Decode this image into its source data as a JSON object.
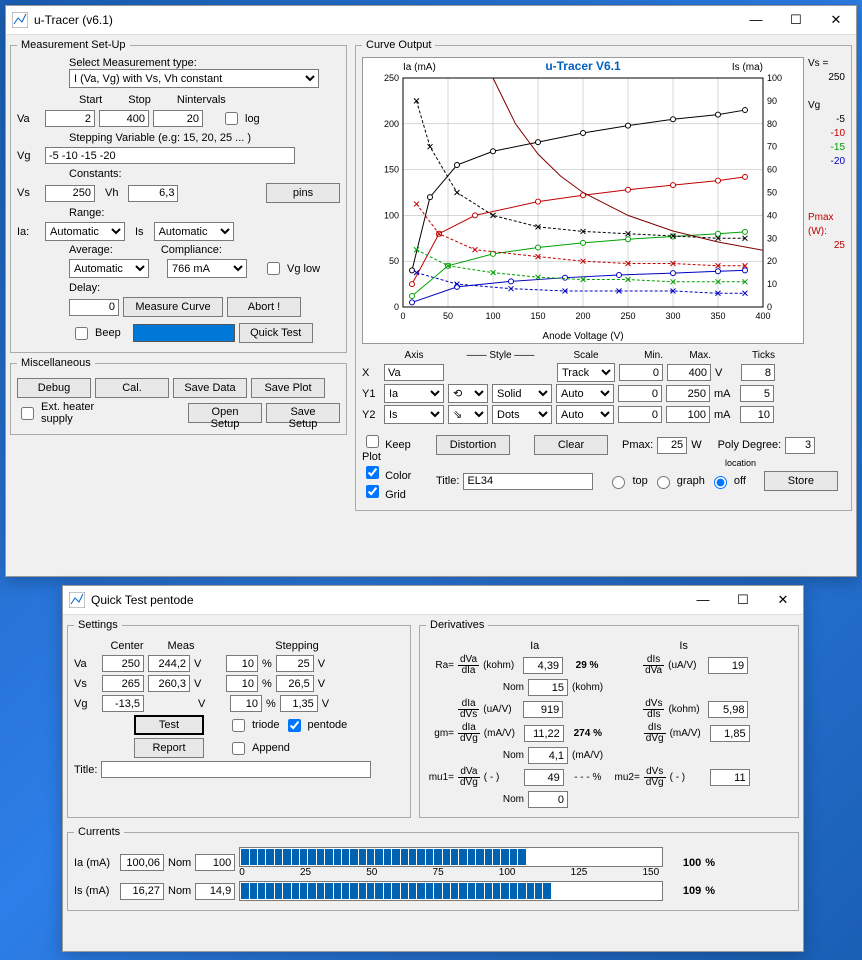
{
  "win1": {
    "title": "u-Tracer (v6.1)",
    "measure": {
      "legend": "Measurement Set-Up",
      "selectType": "Select Measurement type:",
      "typeValue": "I (Va, Vg) with Vs, Vh constant",
      "startLbl": "Start",
      "stopLbl": "Stop",
      "nintLbl": "Nintervals",
      "vaLbl": "Va",
      "vaStart": "2",
      "vaStop": "400",
      "vaN": "20",
      "logLbl": "log",
      "steppingLbl": "Stepping Variable (e.g: 15, 20, 25 ... )",
      "vgLbl": "Vg",
      "vgVal": "-5 -10 -15 -20",
      "constLbl": "Constants:",
      "vsLbl": "Vs",
      "vsVal": "250",
      "vhLbl": "Vh",
      "vhVal": "6,3",
      "pinsBtn": "pins",
      "rangeLbl": "Range:",
      "iaLbl": "Ia:",
      "iaRange": "Automatic",
      "isLbl": "Is",
      "isRange": "Automatic",
      "avgLbl": "Average:",
      "avgVal": "Automatic",
      "compLbl": "Compliance:",
      "compVal": "766 mA",
      "vglowLbl": "Vg low",
      "delayLbl": "Delay:",
      "delayVal": "0",
      "measureBtn": "Measure Curve",
      "abortBtn": "Abort !",
      "beepLbl": "Beep",
      "quickBtn": "Quick Test"
    },
    "misc": {
      "legend": "Miscellaneous",
      "debug": "Debug",
      "cal": "Cal.",
      "saveData": "Save Data",
      "savePlot": "Save Plot",
      "extHeater": "Ext. heater supply",
      "openSetup": "Open Setup",
      "saveSetup": "Save Setup"
    },
    "curve": {
      "legend": "Curve Output",
      "chart": {
        "title": "u-Tracer V6.1",
        "titleColor": "#0060c0",
        "xLabel": "Anode Voltage (V)",
        "y1Label": "Ia (mA)",
        "y2Label": "Is (ma)",
        "xlim": [
          0,
          400
        ],
        "xtick": 50,
        "y1lim": [
          0,
          250
        ],
        "y1tick": 50,
        "y2lim": [
          0,
          100
        ],
        "y2tick": 10,
        "gridColor": "#b0b0b0",
        "bg": "#ffffff",
        "sideLabels": {
          "vs": "Vs =",
          "vsVal": "250",
          "vg": "Vg",
          "pmax": "Pmax (W):",
          "pmaxVal": "25"
        },
        "vgColors": {
          "-5": "#000000",
          "-10": "#c00000",
          "-15": "#00a000",
          "-20": "#0000c0"
        },
        "series": [
          {
            "name": "Ia -5",
            "color": "#000000",
            "style": "solid",
            "marker": "o",
            "data": [
              [
                10,
                40
              ],
              [
                30,
                120
              ],
              [
                60,
                155
              ],
              [
                100,
                170
              ],
              [
                150,
                180
              ],
              [
                200,
                190
              ],
              [
                250,
                198
              ],
              [
                300,
                205
              ],
              [
                350,
                210
              ],
              [
                380,
                215
              ]
            ]
          },
          {
            "name": "Ia -10",
            "color": "#c00000",
            "style": "solid",
            "marker": "o",
            "data": [
              [
                10,
                25
              ],
              [
                40,
                80
              ],
              [
                80,
                100
              ],
              [
                150,
                115
              ],
              [
                200,
                122
              ],
              [
                250,
                128
              ],
              [
                300,
                133
              ],
              [
                350,
                138
              ],
              [
                380,
                142
              ]
            ]
          },
          {
            "name": "Ia -15",
            "color": "#00a000",
            "style": "solid",
            "marker": "o",
            "data": [
              [
                10,
                12
              ],
              [
                50,
                45
              ],
              [
                100,
                58
              ],
              [
                150,
                65
              ],
              [
                200,
                70
              ],
              [
                250,
                74
              ],
              [
                300,
                77
              ],
              [
                350,
                80
              ],
              [
                380,
                82
              ]
            ]
          },
          {
            "name": "Ia -20",
            "color": "#0000c0",
            "style": "solid",
            "marker": "o",
            "data": [
              [
                10,
                5
              ],
              [
                60,
                22
              ],
              [
                120,
                28
              ],
              [
                180,
                32
              ],
              [
                240,
                35
              ],
              [
                300,
                37
              ],
              [
                350,
                39
              ],
              [
                380,
                40
              ]
            ]
          },
          {
            "name": "Is -5",
            "color": "#000000",
            "style": "dash",
            "marker": "x",
            "y2": true,
            "data": [
              [
                15,
                90
              ],
              [
                30,
                70
              ],
              [
                60,
                50
              ],
              [
                100,
                40
              ],
              [
                150,
                35
              ],
              [
                200,
                33
              ],
              [
                250,
                32
              ],
              [
                300,
                31
              ],
              [
                350,
                30
              ],
              [
                380,
                30
              ]
            ]
          },
          {
            "name": "Is -10",
            "color": "#c00000",
            "style": "dash",
            "marker": "x",
            "y2": true,
            "data": [
              [
                15,
                45
              ],
              [
                40,
                32
              ],
              [
                80,
                25
              ],
              [
                150,
                22
              ],
              [
                200,
                20
              ],
              [
                250,
                19
              ],
              [
                300,
                19
              ],
              [
                350,
                18
              ],
              [
                380,
                18
              ]
            ]
          },
          {
            "name": "Is -15",
            "color": "#00a000",
            "style": "dash",
            "marker": "x",
            "y2": true,
            "data": [
              [
                15,
                25
              ],
              [
                50,
                18
              ],
              [
                100,
                15
              ],
              [
                150,
                13
              ],
              [
                200,
                12
              ],
              [
                250,
                12
              ],
              [
                300,
                11
              ],
              [
                350,
                11
              ],
              [
                380,
                11
              ]
            ]
          },
          {
            "name": "Is -20",
            "color": "#0000c0",
            "style": "dash",
            "marker": "x",
            "y2": true,
            "data": [
              [
                15,
                15
              ],
              [
                60,
                10
              ],
              [
                120,
                8
              ],
              [
                180,
                7
              ],
              [
                240,
                7
              ],
              [
                300,
                7
              ],
              [
                350,
                6
              ],
              [
                380,
                6
              ]
            ]
          },
          {
            "name": "Pmax",
            "color": "#800000",
            "style": "solid",
            "data": [
              [
                100,
                250
              ],
              [
                125,
                200
              ],
              [
                150,
                167
              ],
              [
                175,
                143
              ],
              [
                200,
                125
              ],
              [
                250,
                100
              ],
              [
                300,
                83
              ],
              [
                350,
                71
              ],
              [
                400,
                62
              ]
            ]
          }
        ]
      },
      "axisHdr": {
        "axis": "Axis",
        "style": "—— Style ——",
        "scale": "Scale",
        "min": "Min.",
        "max": "Max.",
        "ticks": "Ticks"
      },
      "rows": [
        {
          "lbl": "X",
          "axis": "Va",
          "s1": "",
          "s2": "",
          "scale": "Track",
          "min": "0",
          "max": "400",
          "unit": "V",
          "ticks": "8",
          "axisType": "text"
        },
        {
          "lbl": "Y1",
          "axis": "Ia",
          "s1": "⟲",
          "s2": "Solid",
          "scale": "Auto",
          "min": "0",
          "max": "250",
          "unit": "mA",
          "ticks": "5",
          "axisType": "select"
        },
        {
          "lbl": "Y2",
          "axis": "Is",
          "s1": "⇘",
          "s2": "Dots",
          "scale": "Auto",
          "min": "0",
          "max": "100",
          "unit": "mA",
          "ticks": "10",
          "axisType": "select"
        }
      ],
      "keepPlot": "Keep Plot",
      "color": "Color",
      "grid": "Grid",
      "distortion": "Distortion",
      "clear": "Clear",
      "pmax": "Pmax:",
      "pmaxVal": "25",
      "pmaxUnit": "W",
      "polyDeg": "Poly Degree:",
      "polyDegVal": "3",
      "location": "location",
      "top": "top",
      "graph": "graph",
      "off": "off",
      "titleLbl": "Title:",
      "titleVal": "EL34",
      "store": "Store"
    }
  },
  "win2": {
    "title": "Quick Test pentode",
    "settings": {
      "legend": "Settings",
      "center": "Center",
      "meas": "Meas",
      "stepping": "Stepping",
      "va": {
        "lbl": "Va",
        "c": "250",
        "m": "244,2",
        "u": "V",
        "p1": "10",
        "pu1": "%",
        "p2": "25",
        "pu2": "V"
      },
      "vs": {
        "lbl": "Vs",
        "c": "265",
        "m": "260,3",
        "u": "V",
        "p1": "10",
        "pu1": "%",
        "p2": "26,5",
        "pu2": "V"
      },
      "vg": {
        "lbl": "Vg",
        "c": "-13,5",
        "u": "V",
        "p1": "10",
        "pu1": "%",
        "p2": "1,35",
        "pu2": "V"
      },
      "testBtn": "Test",
      "reportBtn": "Report",
      "triode": "triode",
      "pentode": "pentode",
      "append": "Append",
      "titleLbl": "Title:",
      "titleVal": ""
    },
    "deriv": {
      "legend": "Derivatives",
      "iaLbl": "Ia",
      "isLbl": "Is",
      "ra": {
        "lbl": "Ra=",
        "f": [
          "dVa",
          "dIa"
        ],
        "u": "(kohm)",
        "v": "4,39",
        "pct": "29  %",
        "nomLbl": "Nom",
        "nom": "15",
        "nu": "(kohm)"
      },
      "dIsdVa": {
        "f": [
          "dIs",
          "dVa"
        ],
        "u": "(uA/V)",
        "v": "19"
      },
      "dIadVs": {
        "f": [
          "dIa",
          "dVs"
        ],
        "u": "(uA/V)",
        "v": "919"
      },
      "dVsdIs": {
        "f": [
          "dVs",
          "dIs"
        ],
        "u": "(kohm)",
        "v": "5,98"
      },
      "gm": {
        "lbl": "gm=",
        "f": [
          "dIa",
          "dVg"
        ],
        "u": "(mA/V)",
        "v": "11,22",
        "pct": "274  %",
        "nomLbl": "Nom",
        "nom": "4,1",
        "nu": "(mA/V)"
      },
      "dIsdVg": {
        "f": [
          "dIs",
          "dVg"
        ],
        "u": "(mA/V)",
        "v": "1,85"
      },
      "mu1": {
        "lbl": "mu1=",
        "f": [
          "dVa",
          "dVg"
        ],
        "u": "( - )",
        "v": "49",
        "pct": "- - -  %",
        "nomLbl": "Nom",
        "nom": "0"
      },
      "mu2": {
        "lbl": "mu2=",
        "f": [
          "dVs",
          "dVg"
        ],
        "u": "( - )",
        "v": "11"
      }
    },
    "currents": {
      "legend": "Currents",
      "ia": {
        "lbl": "Ia (mA)",
        "v": "100,06",
        "nomLbl": "Nom",
        "nom": "100",
        "pct": "100",
        "pu": "%",
        "fill": 0.67
      },
      "is": {
        "lbl": "Is (mA)",
        "v": "16,27",
        "nomLbl": "Nom",
        "nom": "14,9",
        "pct": "109",
        "pu": "%",
        "fill": 0.73
      },
      "scale": [
        "0",
        "25",
        "50",
        "75",
        "100",
        "125",
        "150"
      ]
    }
  }
}
